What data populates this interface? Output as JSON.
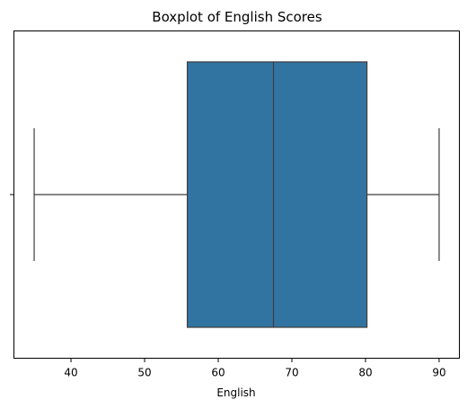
{
  "chart_data": {
    "type": "boxplot",
    "title": "Boxplot of English Scores",
    "xlabel": "English",
    "ylabel": "",
    "orientation": "horizontal",
    "series": [
      {
        "min": 35,
        "q1": 55.8,
        "median": 67.5,
        "q3": 80.2,
        "max": 90
      }
    ],
    "xlim": [
      32.25,
      92.75
    ],
    "xticks": [
      40,
      50,
      60,
      70,
      80,
      90
    ],
    "grid": false,
    "box_color": "#3274a1",
    "line_color": "#3d3d3d"
  }
}
